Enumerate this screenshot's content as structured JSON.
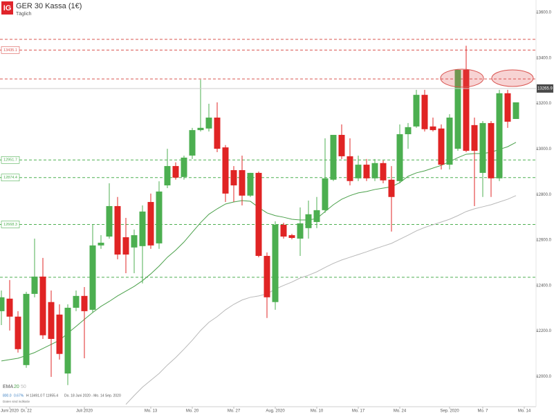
{
  "chart_data": {
    "type": "candlestick",
    "logo": "IG",
    "title": "GER 30 Kassa (1€)",
    "subtitle": "Täglich",
    "categories": [
      null,
      "Juni 2020",
      null,
      "Di. 22",
      null,
      null,
      null,
      null,
      null,
      null,
      "Juli 2020",
      null,
      null,
      null,
      null,
      null,
      null,
      null,
      "Mo. 13",
      null,
      null,
      null,
      null,
      "Mo. 20",
      null,
      null,
      null,
      null,
      "Mo. 27",
      null,
      null,
      null,
      null,
      "Aug. 2020",
      null,
      null,
      null,
      null,
      "Mo. 10",
      null,
      null,
      null,
      null,
      "Mo. 17",
      null,
      null,
      null,
      null,
      "Mo. 24",
      null,
      null,
      null,
      null,
      null,
      "Sep. 2020",
      null,
      null,
      null,
      "Mo. 7",
      null,
      null,
      null,
      null,
      "Mo. 14"
    ],
    "open": [
      12287,
      12342,
      12263,
      12050,
      12363,
      12439,
      12327,
      12272,
      12013,
      12302,
      12354,
      12293,
      12576,
      12615,
      12749,
      12612,
      12567,
      12573,
      12767,
      12585,
      12840,
      12925,
      12877,
      12971,
      13083,
      13090,
      13138,
      13007,
      12907,
      12907,
      12795,
      12895,
      12530,
      12327,
      12667,
      12621,
      12606,
      12652,
      12679,
      12731,
      12865,
      13062,
      12968,
      12871,
      12931,
      12871,
      12938,
      12865,
      12859,
      13065,
      13099,
      13238,
      13099,
      13090,
      12931,
      13001,
      13348,
      13105,
      12895,
      13114,
      12871,
      13245,
      13132,
      null
    ],
    "high": [
      12378,
      12424,
      12287,
      12372,
      12606,
      12521,
      12378,
      12317,
      12317,
      12378,
      12393,
      12667,
      12621,
      12849,
      12789,
      12697,
      12646,
      12752,
      12804,
      12858,
      13001,
      12941,
      12971,
      13093,
      13305,
      13199,
      13205,
      13017,
      12925,
      12971,
      12895,
      12901,
      12545,
      12682,
      12676,
      12627,
      12743,
      12773,
      12789,
      13047,
      13062,
      13108,
      13047,
      12971,
      12956,
      12956,
      12950,
      12925,
      13108,
      13114,
      13260,
      13260,
      13138,
      13108,
      13153,
      13351,
      13454,
      13138,
      13123,
      13123,
      13260,
      13260,
      13205,
      null
    ],
    "low": [
      12226,
      12202,
      12105,
      12038,
      12348,
      12165,
      11998,
      12074,
      11962,
      12287,
      12080,
      12281,
      12561,
      12606,
      12515,
      12454,
      12454,
      12409,
      12561,
      12561,
      12828,
      12865,
      12865,
      12956,
      13077,
      13077,
      12986,
      12767,
      12767,
      12752,
      12789,
      12524,
      12257,
      12293,
      12606,
      12603,
      12530,
      12606,
      12652,
      12719,
      12859,
      12956,
      12840,
      12859,
      12859,
      12859,
      12849,
      12637,
      12849,
      13001,
      13093,
      13077,
      13077,
      12910,
      12910,
      12992,
      12986,
      12749,
      12789,
      12789,
      12859,
      13093,
      13132,
      null
    ],
    "close": [
      12348,
      12263,
      12120,
      12363,
      12439,
      12181,
      12165,
      12099,
      12302,
      12354,
      12287,
      12576,
      12588,
      12749,
      12536,
      12536,
      12621,
      12725,
      12576,
      12813,
      12925,
      12874,
      12962,
      13083,
      13093,
      13138,
      13001,
      12804,
      12840,
      12795,
      12895,
      12530,
      12348,
      12667,
      12615,
      12609,
      12673,
      12713,
      12731,
      12871,
      13062,
      12968,
      12859,
      12931,
      12871,
      12938,
      12862,
      12789,
      13065,
      13096,
      13238,
      13087,
      13083,
      12931,
      13138,
      13348,
      12992,
      12992,
      13114,
      12871,
      13245,
      13120,
      13205,
      null
    ],
    "colors": {
      "up": "#4caf50",
      "down": "#e02424"
    },
    "indicator_label": "EMA",
    "indicators": [
      {
        "name": "20",
        "color": "#4aa04a",
        "values": [
          12068,
          12074,
          12080,
          12092,
          12105,
          12123,
          12141,
          12159,
          12190,
          12220,
          12251,
          12281,
          12308,
          12330,
          12354,
          12375,
          12396,
          12421,
          12451,
          12485,
          12524,
          12555,
          12591,
          12634,
          12676,
          12713,
          12737,
          12758,
          12767,
          12773,
          12770,
          12743,
          12719,
          12707,
          12700,
          12691,
          12688,
          12688,
          12694,
          12725,
          12755,
          12779,
          12795,
          12807,
          12813,
          12822,
          12828,
          12834,
          12852,
          12880,
          12895,
          12904,
          12916,
          12928,
          12944,
          12962,
          12977,
          12980,
          12980,
          12986,
          12998,
          13010,
          13029,
          null
        ]
      },
      {
        "name": "50",
        "color": "#b8b8b8",
        "values": [
          null,
          null,
          null,
          null,
          null,
          null,
          null,
          null,
          null,
          null,
          null,
          null,
          null,
          null,
          null,
          11877,
          11916,
          11953,
          11983,
          12013,
          12050,
          12083,
          12120,
          12159,
          12202,
          12238,
          12263,
          12293,
          12317,
          12336,
          12348,
          12354,
          12363,
          12384,
          12400,
          12415,
          12433,
          12445,
          12460,
          12479,
          12497,
          12512,
          12524,
          12536,
          12548,
          12561,
          12573,
          12585,
          12603,
          12621,
          12640,
          12655,
          12667,
          12679,
          12691,
          12707,
          12725,
          12737,
          12746,
          12755,
          12767,
          12779,
          12795,
          null
        ]
      }
    ],
    "levels": [
      {
        "value": 13482,
        "color": "#d9534f"
      },
      {
        "value": 13435.1,
        "color": "#d9534f",
        "tag": true
      },
      {
        "value": 13308,
        "color": "#d9534f"
      },
      {
        "value": 12951.7,
        "color": "#4caf50",
        "tag": true
      },
      {
        "value": 12874.4,
        "color": "#4caf50",
        "tag": true
      },
      {
        "value": 12668.3,
        "color": "#4caf50",
        "tag": true
      },
      {
        "value": 12436,
        "color": "#4caf50"
      }
    ],
    "last_price": 13265.9,
    "ylim": [
      11867,
      13655
    ],
    "yticks": [
      {
        "value": 12000,
        "label": "12000.0"
      },
      {
        "value": 12200,
        "label": "12200.0"
      },
      {
        "value": 12400,
        "label": "12400.0"
      },
      {
        "value": 12600,
        "label": "12600.0"
      },
      {
        "value": 12800,
        "label": "12800.0"
      },
      {
        "value": 13000,
        "label": "13000.0"
      },
      {
        "value": 13200,
        "label": "13200.0"
      },
      {
        "value": 13400,
        "label": "13400.0"
      },
      {
        "value": 13600,
        "label": "13600.0"
      }
    ],
    "stats": [
      "800.0",
      "0.67%",
      "H 13491.0",
      "T 11955.4",
      "Do. 18 Juni 2020 - Mo. 14 Sep. 2020"
    ],
    "note": "Daten sind indikativ"
  }
}
